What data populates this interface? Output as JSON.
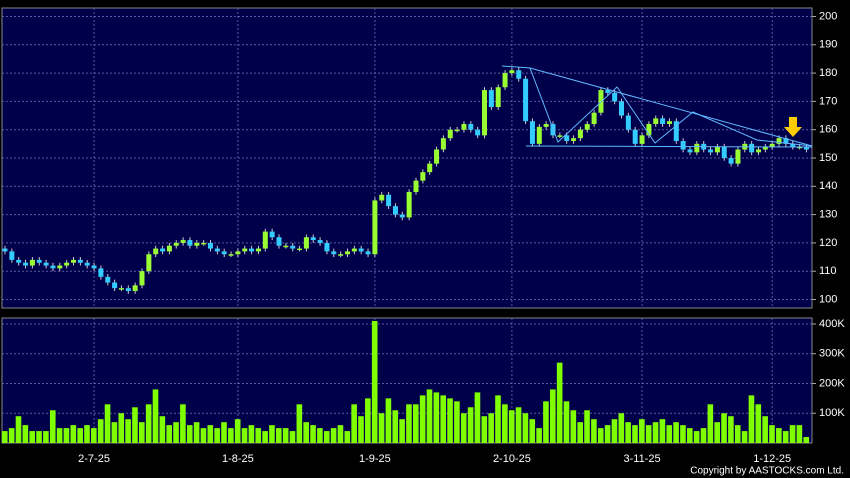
{
  "chart_data": [
    {
      "type": "candlestick",
      "up_color": "#99ff33",
      "down_color": "#33ccff",
      "grid": true,
      "open": [
        118,
        117,
        114,
        113,
        112,
        114,
        113,
        112,
        111,
        112,
        113,
        114,
        113,
        112,
        111,
        108,
        106,
        104,
        104,
        103,
        105,
        110,
        116,
        118,
        117,
        119,
        120,
        121,
        119,
        120,
        120,
        118,
        117,
        116,
        116,
        117,
        118,
        117,
        118,
        124,
        122,
        119,
        119,
        118,
        118,
        122,
        121,
        120,
        117,
        116,
        116,
        117,
        118,
        117,
        116,
        135,
        137,
        133,
        130,
        129,
        138,
        142,
        145,
        148,
        153,
        157,
        160,
        160,
        162,
        160,
        158,
        174,
        168,
        175,
        180,
        181,
        178,
        163,
        155,
        161,
        162,
        158,
        158,
        156,
        157,
        160,
        162,
        166,
        174,
        173,
        170,
        165,
        160,
        155,
        158,
        162,
        164,
        162,
        163,
        156,
        153,
        152,
        155,
        153,
        152,
        154,
        150,
        148,
        153,
        155,
        152,
        153,
        154,
        155,
        157,
        155,
        154,
        154
      ],
      "high": [
        119,
        118,
        115,
        114,
        115,
        115,
        114,
        113,
        113,
        114,
        115,
        115,
        114,
        113,
        112,
        109,
        107,
        105,
        105,
        106,
        111,
        117,
        119,
        119,
        120,
        121,
        122,
        122,
        121,
        121,
        121,
        119,
        118,
        117,
        118,
        119,
        119,
        119,
        125,
        125,
        123,
        120,
        120,
        119,
        123,
        123,
        122,
        121,
        118,
        117,
        118,
        119,
        119,
        118,
        136,
        138,
        138,
        134,
        131,
        139,
        143,
        146,
        149,
        154,
        158,
        161,
        161,
        163,
        163,
        161,
        175,
        175,
        176,
        181,
        182,
        182,
        179,
        164,
        162,
        163,
        163,
        159,
        159,
        158,
        161,
        163,
        167,
        175,
        175,
        174,
        171,
        166,
        161,
        159,
        163,
        165,
        165,
        164,
        164,
        157,
        154,
        156,
        156,
        154,
        155,
        155,
        151,
        154,
        156,
        156,
        154,
        155,
        156,
        158,
        158,
        156,
        155,
        155
      ],
      "low": [
        116,
        113,
        112,
        111,
        111,
        112,
        111,
        110,
        110,
        111,
        112,
        112,
        111,
        110,
        107,
        105,
        103,
        103,
        102,
        102,
        104,
        109,
        115,
        116,
        116,
        118,
        119,
        118,
        118,
        119,
        117,
        116,
        115,
        115,
        115,
        116,
        116,
        116,
        117,
        121,
        118,
        118,
        117,
        117,
        117,
        120,
        119,
        116,
        115,
        115,
        115,
        116,
        116,
        115,
        115,
        134,
        132,
        129,
        128,
        128,
        137,
        141,
        144,
        147,
        152,
        156,
        159,
        159,
        159,
        157,
        157,
        167,
        167,
        174,
        179,
        177,
        162,
        154,
        154,
        160,
        157,
        157,
        155,
        155,
        156,
        159,
        161,
        165,
        172,
        169,
        164,
        159,
        154,
        154,
        157,
        161,
        161,
        161,
        155,
        152,
        151,
        151,
        152,
        151,
        151,
        149,
        147,
        147,
        152,
        151,
        151,
        152,
        153,
        154,
        154,
        153,
        153,
        152
      ],
      "close": [
        117,
        114,
        113,
        112,
        114,
        113,
        112,
        111,
        112,
        113,
        114,
        113,
        112,
        111,
        108,
        106,
        104,
        104,
        103,
        105,
        110,
        116,
        118,
        117,
        119,
        120,
        121,
        119,
        120,
        120,
        118,
        117,
        116,
        116,
        117,
        118,
        117,
        118,
        124,
        122,
        119,
        119,
        118,
        118,
        122,
        121,
        120,
        117,
        116,
        116,
        117,
        118,
        117,
        116,
        135,
        137,
        133,
        130,
        129,
        138,
        142,
        145,
        148,
        153,
        157,
        160,
        160,
        162,
        160,
        158,
        174,
        168,
        175,
        180,
        181,
        178,
        163,
        155,
        161,
        162,
        158,
        158,
        156,
        157,
        160,
        162,
        166,
        174,
        173,
        170,
        165,
        160,
        155,
        158,
        162,
        164,
        162,
        163,
        156,
        153,
        152,
        155,
        153,
        152,
        154,
        150,
        148,
        153,
        155,
        152,
        153,
        154,
        155,
        157,
        155,
        154,
        154,
        153
      ],
      "ylim": [
        97,
        203
      ],
      "yticks": [
        100,
        110,
        120,
        130,
        140,
        150,
        160,
        170,
        180,
        190,
        200
      ]
    },
    {
      "type": "bar",
      "color": "#80ff00",
      "grid": true,
      "categories": [
        null,
        null,
        null,
        null,
        null,
        null,
        null,
        null,
        null,
        null,
        null,
        null,
        null,
        "2-7-25",
        null,
        null,
        null,
        null,
        null,
        null,
        null,
        null,
        null,
        null,
        null,
        null,
        null,
        null,
        null,
        null,
        null,
        null,
        null,
        null,
        "1-8-25",
        null,
        null,
        null,
        null,
        null,
        null,
        null,
        null,
        null,
        null,
        null,
        null,
        null,
        null,
        null,
        null,
        null,
        null,
        null,
        "1-9-25",
        null,
        null,
        null,
        null,
        null,
        null,
        null,
        null,
        null,
        null,
        null,
        null,
        null,
        null,
        null,
        null,
        null,
        null,
        null,
        "2-10-25",
        null,
        null,
        null,
        null,
        null,
        null,
        null,
        null,
        null,
        null,
        null,
        null,
        null,
        null,
        null,
        null,
        null,
        null,
        "3-11-25",
        null,
        null,
        null,
        null,
        null,
        null,
        null,
        null,
        null,
        null,
        null,
        null,
        null,
        null,
        null,
        null,
        null,
        null,
        "1-12-25",
        null,
        null,
        null,
        null,
        null
      ],
      "values": [
        40000,
        50000,
        90000,
        60000,
        40000,
        40000,
        40000,
        110000,
        50000,
        50000,
        60000,
        50000,
        60000,
        50000,
        80000,
        130000,
        70000,
        100000,
        80000,
        120000,
        70000,
        130000,
        180000,
        90000,
        60000,
        70000,
        130000,
        60000,
        70000,
        50000,
        60000,
        50000,
        70000,
        50000,
        80000,
        50000,
        60000,
        50000,
        40000,
        60000,
        50000,
        50000,
        40000,
        130000,
        70000,
        60000,
        50000,
        40000,
        50000,
        60000,
        40000,
        130000,
        90000,
        150000,
        410000,
        100000,
        150000,
        110000,
        80000,
        130000,
        130000,
        160000,
        180000,
        170000,
        160000,
        150000,
        140000,
        100000,
        120000,
        170000,
        90000,
        100000,
        160000,
        130000,
        110000,
        120000,
        100000,
        80000,
        50000,
        140000,
        180000,
        270000,
        140000,
        110000,
        70000,
        110000,
        80000,
        50000,
        60000,
        80000,
        100000,
        70000,
        60000,
        80000,
        60000,
        70000,
        80000,
        60000,
        70000,
        60000,
        50000,
        40000,
        50000,
        130000,
        70000,
        100000,
        90000,
        60000,
        40000,
        160000,
        130000,
        90000,
        60000,
        50000,
        40000,
        60000,
        60000,
        20000
      ],
      "ylim": [
        0,
        420000
      ],
      "yticks": [
        {
          "value": 100000,
          "label": "100K"
        },
        {
          "value": 200000,
          "label": "200K"
        },
        {
          "value": 300000,
          "label": "300K"
        },
        {
          "value": 400000,
          "label": "400K"
        }
      ]
    }
  ],
  "copyright": "Copyright by AASTOCKS.com Ltd."
}
